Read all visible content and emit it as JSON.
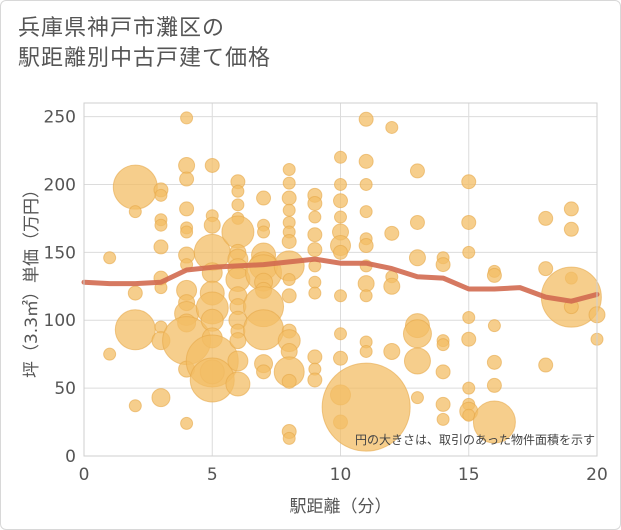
{
  "title_line1": "兵庫県神戸市灘区の",
  "title_line2": "駅距離別中古戸建て価格",
  "chart_data": {
    "type": "scatter",
    "xlabel": "駅距離（分）",
    "ylabel": "坪（3.3㎡）単価（万円）",
    "note": "円の大きさは、取引のあった物件面積を示す",
    "xlim": [
      0,
      20
    ],
    "ylim": [
      0,
      260
    ],
    "xticks": [
      0,
      5,
      10,
      15,
      20
    ],
    "yticks": [
      0,
      50,
      100,
      150,
      200,
      250
    ],
    "grid": true,
    "colors": {
      "bubble": "#f3bd65",
      "bubble_edge": "#e6a94a",
      "line": "#d26a50"
    },
    "trend": {
      "x": [
        0,
        1,
        2,
        3,
        4,
        5,
        6,
        7,
        8,
        9,
        10,
        11,
        12,
        13,
        14,
        15,
        16,
        17,
        18,
        19,
        20
      ],
      "y": [
        128,
        127,
        127,
        128,
        137,
        139,
        140,
        141,
        143,
        145,
        142,
        142,
        138,
        132,
        131,
        123,
        123,
        124,
        117,
        114,
        119
      ]
    },
    "points": [
      [
        1,
        146,
        6
      ],
      [
        1,
        75,
        6
      ],
      [
        2,
        198,
        22
      ],
      [
        2,
        180,
        6
      ],
      [
        2,
        120,
        7
      ],
      [
        2,
        93,
        20
      ],
      [
        2,
        37,
        6
      ],
      [
        3,
        196,
        7
      ],
      [
        3,
        192,
        6
      ],
      [
        3,
        174,
        6
      ],
      [
        3,
        170,
        6
      ],
      [
        3,
        154,
        7
      ],
      [
        3,
        131,
        7
      ],
      [
        3,
        124,
        6
      ],
      [
        3,
        95,
        6
      ],
      [
        3,
        85,
        9
      ],
      [
        3,
        43,
        9
      ],
      [
        4,
        249,
        6
      ],
      [
        4,
        214,
        8
      ],
      [
        4,
        204,
        7
      ],
      [
        4,
        182,
        7
      ],
      [
        4,
        168,
        6
      ],
      [
        4,
        165,
        6
      ],
      [
        4,
        148,
        8
      ],
      [
        4,
        141,
        6
      ],
      [
        4,
        122,
        10
      ],
      [
        4,
        113,
        8
      ],
      [
        4,
        105,
        12
      ],
      [
        4,
        98,
        9
      ],
      [
        4,
        85,
        24
      ],
      [
        4,
        64,
        8
      ],
      [
        4,
        24,
        6
      ],
      [
        5,
        214,
        7
      ],
      [
        5,
        177,
        6
      ],
      [
        5,
        170,
        8
      ],
      [
        5,
        150,
        18
      ],
      [
        5,
        135,
        10
      ],
      [
        5,
        120,
        12
      ],
      [
        5,
        109,
        16
      ],
      [
        5,
        100,
        11
      ],
      [
        5,
        87,
        10
      ],
      [
        5,
        70,
        26
      ],
      [
        5,
        62,
        12
      ],
      [
        5,
        56,
        22
      ],
      [
        6,
        202,
        7
      ],
      [
        6,
        195,
        6
      ],
      [
        6,
        185,
        6
      ],
      [
        6,
        175,
        6
      ],
      [
        6,
        165,
        16
      ],
      [
        6,
        150,
        8
      ],
      [
        6,
        145,
        10
      ],
      [
        6,
        138,
        10
      ],
      [
        6,
        130,
        12
      ],
      [
        6,
        118,
        9
      ],
      [
        6,
        110,
        8
      ],
      [
        6,
        100,
        9
      ],
      [
        6,
        92,
        7
      ],
      [
        6,
        85,
        8
      ],
      [
        6,
        70,
        10
      ],
      [
        6,
        53,
        12
      ],
      [
        7,
        190,
        7
      ],
      [
        7,
        170,
        6
      ],
      [
        7,
        165,
        6
      ],
      [
        7,
        148,
        12
      ],
      [
        7,
        140,
        14
      ],
      [
        7,
        135,
        18
      ],
      [
        7,
        128,
        9
      ],
      [
        7,
        122,
        8
      ],
      [
        7,
        110,
        20
      ],
      [
        7,
        93,
        20
      ],
      [
        7,
        68,
        9
      ],
      [
        7,
        62,
        7
      ],
      [
        8,
        211,
        6
      ],
      [
        8,
        201,
        6
      ],
      [
        8,
        190,
        7
      ],
      [
        8,
        181,
        6
      ],
      [
        8,
        172,
        6
      ],
      [
        8,
        165,
        6
      ],
      [
        8,
        158,
        7
      ],
      [
        8,
        140,
        15
      ],
      [
        8,
        130,
        6
      ],
      [
        8,
        118,
        7
      ],
      [
        8,
        92,
        7
      ],
      [
        8,
        85,
        11
      ],
      [
        8,
        77,
        8
      ],
      [
        8,
        62,
        15
      ],
      [
        8,
        55,
        7
      ],
      [
        8,
        18,
        7
      ],
      [
        8,
        13,
        6
      ],
      [
        9,
        192,
        7
      ],
      [
        9,
        186,
        7
      ],
      [
        9,
        176,
        6
      ],
      [
        9,
        163,
        7
      ],
      [
        9,
        152,
        7
      ],
      [
        9,
        140,
        6
      ],
      [
        9,
        128,
        6
      ],
      [
        9,
        120,
        6
      ],
      [
        9,
        73,
        7
      ],
      [
        9,
        64,
        6
      ],
      [
        9,
        56,
        7
      ],
      [
        10,
        220,
        6
      ],
      [
        10,
        200,
        6
      ],
      [
        10,
        188,
        7
      ],
      [
        10,
        176,
        6
      ],
      [
        10,
        165,
        8
      ],
      [
        10,
        155,
        10
      ],
      [
        10,
        150,
        7
      ],
      [
        10,
        118,
        6
      ],
      [
        10,
        90,
        6
      ],
      [
        10,
        72,
        7
      ],
      [
        10,
        45,
        10
      ],
      [
        10,
        25,
        7
      ],
      [
        11,
        248,
        7
      ],
      [
        11,
        217,
        7
      ],
      [
        11,
        200,
        6
      ],
      [
        11,
        180,
        6
      ],
      [
        11,
        160,
        6
      ],
      [
        11,
        155,
        7
      ],
      [
        11,
        140,
        6
      ],
      [
        11,
        127,
        8
      ],
      [
        11,
        118,
        6
      ],
      [
        11,
        84,
        6
      ],
      [
        11,
        77,
        6
      ],
      [
        11,
        36,
        44
      ],
      [
        12,
        242,
        6
      ],
      [
        12,
        164,
        7
      ],
      [
        12,
        132,
        6
      ],
      [
        12,
        125,
        8
      ],
      [
        12,
        77,
        8
      ],
      [
        13,
        210,
        7
      ],
      [
        13,
        172,
        7
      ],
      [
        13,
        146,
        8
      ],
      [
        13,
        96,
        12
      ],
      [
        13,
        90,
        14
      ],
      [
        13,
        70,
        13
      ],
      [
        13,
        43,
        6
      ],
      [
        14,
        146,
        6
      ],
      [
        14,
        141,
        7
      ],
      [
        14,
        85,
        6
      ],
      [
        14,
        82,
        6
      ],
      [
        14,
        62,
        7
      ],
      [
        14,
        38,
        7
      ],
      [
        14,
        27,
        6
      ],
      [
        15,
        202,
        7
      ],
      [
        15,
        172,
        7
      ],
      [
        15,
        150,
        6
      ],
      [
        15,
        102,
        6
      ],
      [
        15,
        86,
        7
      ],
      [
        15,
        50,
        6
      ],
      [
        15,
        38,
        6
      ],
      [
        15,
        33,
        9
      ],
      [
        15,
        30,
        6
      ],
      [
        16,
        136,
        6
      ],
      [
        16,
        133,
        7
      ],
      [
        16,
        96,
        6
      ],
      [
        16,
        69,
        7
      ],
      [
        16,
        52,
        7
      ],
      [
        16,
        25,
        21
      ],
      [
        18,
        175,
        7
      ],
      [
        18,
        138,
        7
      ],
      [
        18,
        67,
        7
      ],
      [
        19,
        182,
        7
      ],
      [
        19,
        167,
        7
      ],
      [
        19,
        131,
        6
      ],
      [
        19,
        117,
        30
      ],
      [
        19,
        110,
        7
      ],
      [
        20,
        104,
        8
      ],
      [
        20,
        86,
        6
      ]
    ]
  }
}
